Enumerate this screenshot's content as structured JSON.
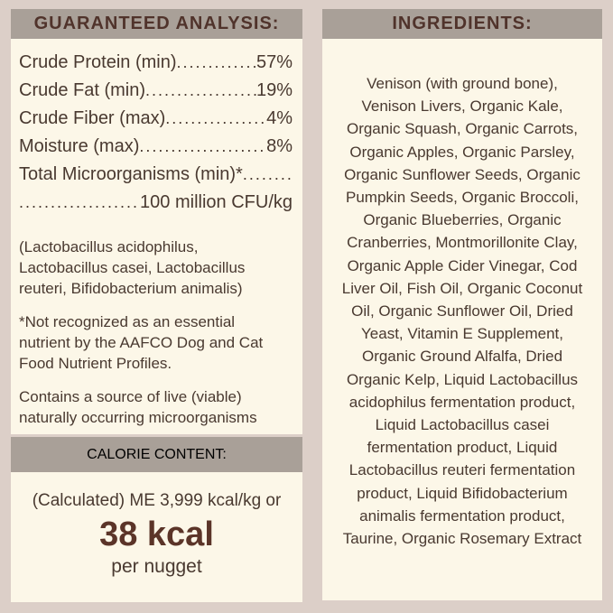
{
  "colors": {
    "page_bg": "#dccfc8",
    "bar_bg": "#a9a098",
    "panel_bg": "#fcf7e8",
    "body_text": "#493930",
    "heading_text": "#50332b",
    "calorie_accent": "#5b3428"
  },
  "guaranteed_analysis": {
    "title": "GUARANTEED ANALYSIS:",
    "leader": "................................................................",
    "rows": [
      {
        "label": "Crude Protein (min)",
        "value": "57%"
      },
      {
        "label": "Crude Fat (min)",
        "value": "19%"
      },
      {
        "label": "Crude Fiber (max)",
        "value": "4%"
      },
      {
        "label": "Moisture (max)",
        "value": "8%"
      }
    ],
    "micro_row": {
      "label": "Total Microorganisms (min)*",
      "value": "100 million CFU/kg"
    },
    "notes": {
      "organisms": [
        "(Lactobacillus acidophilus,",
        "Lactobacillus casei, Lactobacillus",
        "reuteri, Bifidobacterium animalis)"
      ],
      "aafco": [
        "*Not recognized as an essential",
        "nutrient by the AAFCO Dog and Cat",
        "Food Nutrient Profiles."
      ],
      "viable": [
        "Contains a source of live (viable)",
        "naturally occurring microorganisms"
      ]
    }
  },
  "calorie_content": {
    "title": "CALORIE CONTENT:",
    "line1": "(Calculated) ME 3,999 kcal/kg or",
    "big_value": "38 kcal",
    "line2": "per nugget"
  },
  "ingredients": {
    "title": "INGREDIENTS:",
    "lines": [
      "Venison (with ground bone),",
      "Venison Livers, Organic Kale,",
      "Organic Squash, Organic Carrots,",
      "Organic Apples, Organic Parsley,",
      "Organic Sunflower Seeds, Organic",
      "Pumpkin Seeds, Organic Broccoli,",
      "Organic Blueberries, Organic",
      "Cranberries, Montmorillonite Clay,",
      "Organic Apple Cider Vinegar, Cod",
      "Liver Oil, Fish Oil, Organic Coconut",
      "Oil, Organic Sunflower Oil, Dried",
      "Yeast, Vitamin E Supplement,",
      "Organic Ground Alfalfa, Dried",
      "Organic Kelp, Liquid Lactobacillus",
      "acidophilus fermentation product,",
      "Liquid Lactobacillus casei",
      "fermentation product, Liquid",
      "Lactobacillus reuteri fermentation",
      "product, Liquid Bifidobacterium",
      "animalis fermentation product,",
      "Taurine, Organic Rosemary Extract"
    ]
  }
}
